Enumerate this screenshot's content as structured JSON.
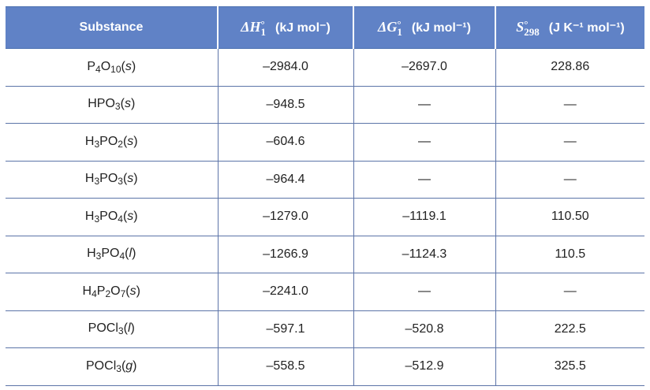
{
  "table": {
    "header": [
      {
        "text": "Substance"
      },
      {
        "symbol": "ΔH",
        "sup": "°",
        "sub": "1",
        "unit": "(kJ mol⁻)"
      },
      {
        "symbol": "ΔG",
        "sup": "°",
        "sub": "1",
        "unit": "(kJ mol⁻¹)"
      },
      {
        "symbol": "S",
        "sup": "°",
        "sub": "298",
        "unit": "(J K⁻¹ mol⁻¹)"
      }
    ],
    "rows": [
      [
        "P4O10(s)",
        "–2984.0",
        "–2697.0",
        "228.86"
      ],
      [
        "HPO3(s)",
        "–948.5",
        "—",
        "—"
      ],
      [
        "H3PO2(s)",
        "–604.6",
        "—",
        "—"
      ],
      [
        "H3PO3(s)",
        "–964.4",
        "—",
        "—"
      ],
      [
        "H3PO4(s)",
        "–1279.0",
        "–1119.1",
        "110.50"
      ],
      [
        "H3PO4(l)",
        "–1266.9",
        "–1124.3",
        "110.5"
      ],
      [
        "H4P2O7(s)",
        "–2241.0",
        "—",
        "—"
      ],
      [
        "POCl3(l)",
        "–597.1",
        "–520.8",
        "222.5"
      ],
      [
        "POCl3(g)",
        "–558.5",
        "–512.9",
        "325.5"
      ]
    ]
  }
}
